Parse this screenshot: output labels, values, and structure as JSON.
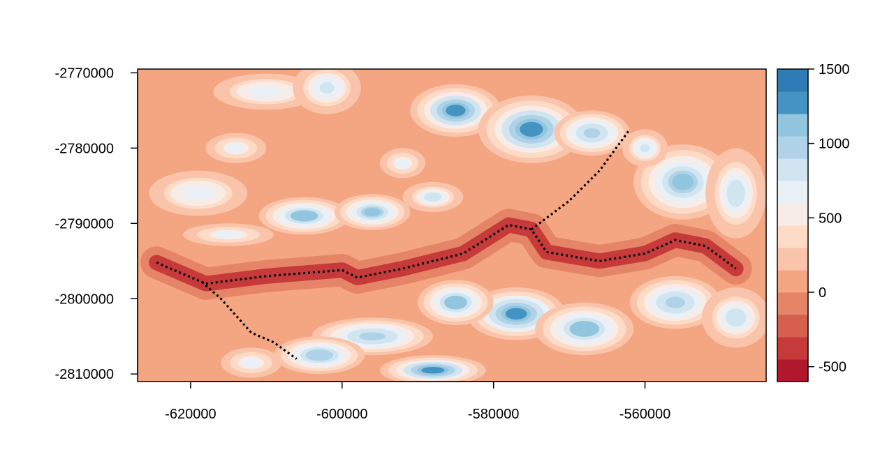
{
  "chart_data": {
    "type": "heatmap",
    "title": "",
    "xlabel": "",
    "ylabel": "",
    "xlim": [
      -627000,
      -544000
    ],
    "ylim": [
      -2811000,
      -2769500
    ],
    "x_ticks": [
      -620000,
      -600000,
      -580000,
      -560000
    ],
    "x_tick_labels": [
      "-620000",
      "-600000",
      "-580000",
      "-560000"
    ],
    "y_ticks": [
      -2770000,
      -2780000,
      -2790000,
      -2800000,
      -2810000
    ],
    "y_tick_labels": [
      "-2770000",
      "-2780000",
      "-2790000",
      "-2800000",
      "-2810000"
    ],
    "grid": false,
    "legend": "right",
    "colorbar": {
      "range": [
        -600,
        1500
      ],
      "ticks": [
        1500,
        1000,
        500,
        0,
        -500
      ],
      "tick_labels": [
        "1500",
        "1000",
        "500",
        "0",
        "-500"
      ],
      "breaks": [
        -600,
        -450,
        -300,
        -150,
        0,
        150,
        300,
        450,
        600,
        750,
        900,
        1050,
        1200,
        1350,
        1500
      ],
      "colors": [
        "#b2182b",
        "#c63a3a",
        "#d6604d",
        "#e58466",
        "#f4a582",
        "#f9c4a9",
        "#fddbc7",
        "#f7ece8",
        "#eaf1f6",
        "#d1e5f0",
        "#b0d2e8",
        "#92c5de",
        "#4393c3",
        "#2f7bb6",
        "#2166ac"
      ]
    },
    "channel_line": {
      "style": "dotted",
      "color": "#000000",
      "main_path": [
        [
          -624500,
          -2795200
        ],
        [
          -618000,
          -2798000
        ],
        [
          -610000,
          -2797000
        ],
        [
          -600000,
          -2796200
        ],
        [
          -598000,
          -2797200
        ],
        [
          -592000,
          -2796000
        ],
        [
          -584000,
          -2794000
        ],
        [
          -578000,
          -2790200
        ],
        [
          -575000,
          -2790800
        ],
        [
          -573000,
          -2793800
        ],
        [
          -566000,
          -2795000
        ],
        [
          -560000,
          -2794000
        ],
        [
          -556000,
          -2792200
        ],
        [
          -552000,
          -2793000
        ],
        [
          -548000,
          -2796000
        ]
      ],
      "branch_southwest": [
        [
          -618500,
          -2797800
        ],
        [
          -616000,
          -2800000
        ],
        [
          -612000,
          -2804500
        ],
        [
          -609000,
          -2805800
        ],
        [
          -606000,
          -2808000
        ]
      ],
      "branch_northeast": [
        [
          -575000,
          -2790800
        ],
        [
          -570000,
          -2787000
        ],
        [
          -566000,
          -2783000
        ],
        [
          -562000,
          -2777500
        ]
      ]
    }
  }
}
